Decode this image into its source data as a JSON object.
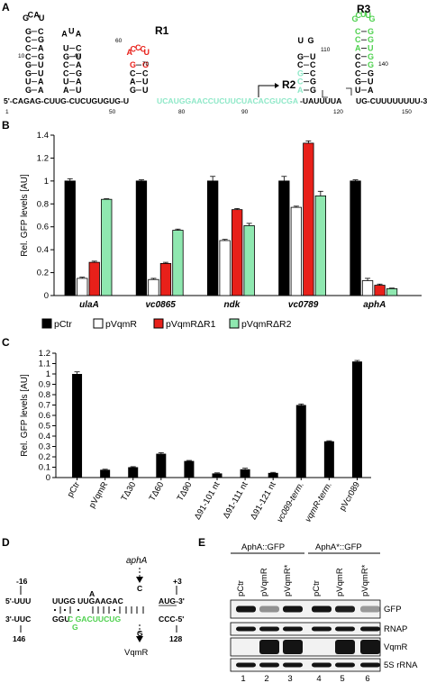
{
  "panel_labels": {
    "a": "A",
    "b": "B",
    "c": "C",
    "d": "D",
    "e": "E"
  },
  "panel_a": {
    "sequence_left": "5'-CAGAG-CUUG-CUCUGUGUG-U",
    "sequence_mid_green": "UCAUGGAACCUCUUCUACACGUCGA",
    "sequence_right": "-UAUUUUA",
    "sequence_tail": "UG-CUUUUUUUU-3'",
    "stem1_left": [
      "G",
      "U",
      "G",
      "G",
      "C",
      "C",
      "C",
      "G"
    ],
    "stem1_right": [
      "A",
      "A",
      "U",
      "U",
      "G",
      "A",
      "G",
      "C"
    ],
    "stem1_loop": [
      "G",
      "C",
      "A",
      "U"
    ],
    "stem2_left": [
      "A",
      "U",
      "C",
      "C",
      "G",
      "U"
    ],
    "stem2_right": [
      "U",
      "A",
      "G",
      "A",
      "U",
      "C"
    ],
    "stem2_loop": [
      "A",
      "U",
      "A"
    ],
    "r1_label": "R1",
    "r1_loop": [
      "A",
      "C",
      "C",
      "C",
      "U"
    ],
    "r1_stem_left": [
      "G",
      "A",
      "C",
      "G"
    ],
    "r1_stem_right": [
      "U",
      "U",
      "C",
      "G"
    ],
    "r2_label": "R2",
    "r3_label": "R3",
    "r3_loop": [
      "G",
      "C",
      "U",
      "U",
      "G"
    ],
    "r3_stem_left": [
      "U",
      "G",
      "C",
      "C",
      "C",
      "A",
      "C",
      "C"
    ],
    "r3_stem_right": [
      "A",
      "U",
      "G",
      "G",
      "G",
      "U",
      "G",
      "G"
    ],
    "stem4_top": "UG",
    "stem4_left": [
      "A",
      "C",
      "G",
      "C",
      "G"
    ],
    "stem4_right": [
      "G",
      "G",
      "C",
      "C",
      "U"
    ],
    "numbers": [
      "1",
      "10",
      "40",
      "60",
      "70",
      "50",
      "80",
      "90",
      "110",
      "120",
      "140",
      "150"
    ]
  },
  "chart_data": [
    {
      "type": "bar",
      "panel": "B",
      "ylabel": "Rel. GFP levels [AU]",
      "ylim": [
        0,
        1.4
      ],
      "yticks": [
        "0",
        "0.2",
        "0.4",
        "0.6",
        "0.8",
        "1",
        "1.2",
        "1.4"
      ],
      "categories": [
        "ulaA",
        "vc0865",
        "ndk",
        "vc0789",
        "aphA"
      ],
      "series": [
        {
          "name": "pCtr",
          "color": "#000000",
          "values": [
            1.0,
            1.0,
            1.0,
            1.0,
            1.0
          ],
          "errors": [
            0.02,
            0.01,
            0.04,
            0.04,
            0.01
          ]
        },
        {
          "name": "pVqmR",
          "color": "#ffffff",
          "values": [
            0.15,
            0.14,
            0.48,
            0.77,
            0.13
          ],
          "errors": [
            0.01,
            0.01,
            0.01,
            0.01,
            0.02
          ]
        },
        {
          "name": "pVqmRΔR1",
          "color": "#e8201a",
          "values": [
            0.29,
            0.28,
            0.75,
            1.33,
            0.09
          ],
          "errors": [
            0.01,
            0.01,
            0.01,
            0.02,
            0.01
          ]
        },
        {
          "name": "pVqmRΔR2",
          "color": "#8fe8b0",
          "values": [
            0.84,
            0.57,
            0.61,
            0.87,
            0.06
          ],
          "errors": [
            0.005,
            0.01,
            0.02,
            0.04,
            0.005
          ]
        }
      ]
    },
    {
      "type": "bar",
      "panel": "C",
      "ylabel": "Rel. GFP levels [AU]",
      "ylim": [
        0,
        1.2
      ],
      "yticks": [
        "0",
        "0.1",
        "0.2",
        "0.3",
        "0.4",
        "0.5",
        "0.6",
        "0.7",
        "0.8",
        "0.9",
        "1",
        "1.1",
        "1.2"
      ],
      "categories": [
        "pCtr",
        "pVqmR",
        "TΔ30",
        "TΔ60",
        "TΔ90",
        "Δ91-101 nt",
        "Δ91-111 nt",
        "Δ91-121 nt",
        "vc089-term.",
        "vqmR-term.",
        "pVcr089"
      ],
      "values": [
        1.0,
        0.075,
        0.1,
        0.23,
        0.16,
        0.04,
        0.08,
        0.045,
        0.7,
        0.35,
        1.12
      ],
      "errors": [
        0.02,
        0.005,
        0.005,
        0.01,
        0.005,
        0.005,
        0.01,
        0.005,
        0.01,
        0.005,
        0.01
      ],
      "color": "#000000"
    }
  ],
  "panel_d": {
    "minus16": "-16",
    "plus3": "+3",
    "aphA_label": "aphA",
    "vqmR_label": "VqmR",
    "top_5prime": "5'-UUU",
    "top_seq": "UUGG UUGAAGAC",
    "top_bulge": "A",
    "top_3prime": "AUG-3'",
    "top_C": "C",
    "bot_3prime": "3'-UUC",
    "bot_seq": "GGU",
    "bot_green": "C GACUUCUG",
    "bot_green2": "G",
    "bot_5prime": "CCC-5'",
    "bot_G": "G",
    "num_146": "146",
    "num_128": "128"
  },
  "panel_e": {
    "group1": "AphA::GFP",
    "group2": "AphA*::GFP",
    "lanes": [
      "pCtr",
      "pVqmR",
      "pVqmR*",
      "pCtr",
      "pVqmR",
      "pVqmR*"
    ],
    "lane_numbers": [
      "1",
      "2",
      "3",
      "4",
      "5",
      "6"
    ],
    "rows": [
      "GFP",
      "RNAP",
      "VqmR",
      "5S rRNA"
    ]
  }
}
